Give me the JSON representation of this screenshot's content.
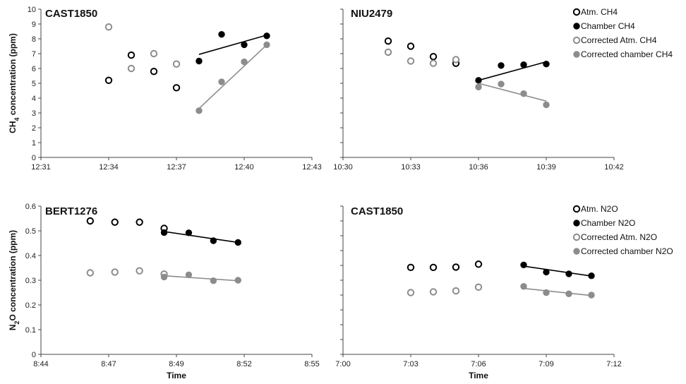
{
  "chart_data": [
    {
      "type": "scatter",
      "title": "CAST1850",
      "ylabel": "CH4 concentration (ppm)",
      "xlabel": "",
      "xlim": [
        "12:31",
        "12:43"
      ],
      "ylim": [
        0,
        10
      ],
      "xticks": [
        "12:31",
        "12:34",
        "12:37",
        "12:40",
        "12:43"
      ],
      "yticks": [
        "0",
        "1",
        "2",
        "3",
        "4",
        "5",
        "6",
        "7",
        "8",
        "9",
        "10"
      ],
      "series": [
        {
          "name": "Atm. CH4",
          "marker": "open",
          "color": "#000000",
          "points": [
            [
              "12:34",
              5.2
            ],
            [
              "12:35",
              6.9
            ],
            [
              "12:36",
              5.8
            ],
            [
              "12:37",
              4.7
            ]
          ]
        },
        {
          "name": "Chamber CH4",
          "marker": "filled",
          "color": "#000000",
          "points": [
            [
              "12:38",
              6.5
            ],
            [
              "12:39",
              8.3
            ],
            [
              "12:40",
              7.6
            ],
            [
              "12:41",
              8.2
            ]
          ],
          "trend": [
            [
              "12:38",
              6.95
            ],
            [
              "12:41",
              8.25
            ]
          ]
        },
        {
          "name": "Corrected Atm. CH4",
          "marker": "open",
          "color": "#8c8c8c",
          "points": [
            [
              "12:34",
              8.8
            ],
            [
              "12:35",
              6.0
            ],
            [
              "12:36",
              7.0
            ],
            [
              "12:37",
              6.3
            ]
          ]
        },
        {
          "name": "Corrected chamber CH4",
          "marker": "filled",
          "color": "#8c8c8c",
          "points": [
            [
              "12:38",
              3.15
            ],
            [
              "12:39",
              5.1
            ],
            [
              "12:40",
              6.45
            ],
            [
              "12:41",
              7.6
            ]
          ],
          "trend": [
            [
              "12:38",
              3.3
            ],
            [
              "12:41",
              7.6
            ]
          ]
        }
      ]
    },
    {
      "type": "scatter",
      "title": "NIU2479",
      "ylabel": "",
      "xlabel": "",
      "xlim": [
        "10:30",
        "10:42"
      ],
      "ylim": [
        0,
        10
      ],
      "xticks": [
        "10:30",
        "10:33",
        "10:36",
        "10:39",
        "10:42"
      ],
      "yticks": [],
      "series": [
        {
          "name": "Atm. CH4",
          "marker": "open",
          "color": "#000000",
          "points": [
            [
              "10:32",
              7.85
            ],
            [
              "10:33",
              7.5
            ],
            [
              "10:34",
              6.8
            ],
            [
              "10:35",
              6.35
            ]
          ]
        },
        {
          "name": "Chamber CH4",
          "marker": "filled",
          "color": "#000000",
          "points": [
            [
              "10:36",
              5.2
            ],
            [
              "10:37",
              6.2
            ],
            [
              "10:38",
              6.25
            ],
            [
              "10:39",
              6.3
            ]
          ],
          "trend": [
            [
              "10:36",
              5.2
            ],
            [
              "10:39",
              6.45
            ]
          ]
        },
        {
          "name": "Corrected Atm. CH4",
          "marker": "open",
          "color": "#8c8c8c",
          "points": [
            [
              "10:32",
              7.1
            ],
            [
              "10:33",
              6.5
            ],
            [
              "10:34",
              6.35
            ],
            [
              "10:35",
              6.6
            ]
          ]
        },
        {
          "name": "Corrected chamber CH4",
          "marker": "filled",
          "color": "#8c8c8c",
          "points": [
            [
              "10:36",
              4.75
            ],
            [
              "10:37",
              4.95
            ],
            [
              "10:38",
              4.3
            ],
            [
              "10:39",
              3.55
            ]
          ],
          "trend": [
            [
              "10:36",
              5.0
            ],
            [
              "10:39",
              3.8
            ]
          ]
        }
      ],
      "legend": [
        "Atm. CH4",
        "Chamber CH4",
        "Corrected Atm. CH4",
        "Corrected chamber CH4"
      ],
      "legend_position": "right"
    },
    {
      "type": "scatter",
      "title": "BERT1276",
      "ylabel": "N2O concentration (ppm)",
      "xlabel": "Time",
      "xlim": [
        "8:44",
        "8:55"
      ],
      "ylim": [
        0,
        0.6
      ],
      "xticks": [
        "8:44",
        "8:47",
        "8:49",
        "8:52",
        "8:55"
      ],
      "yticks": [
        "0",
        "0.1",
        "0.2",
        "0.3",
        "0.4",
        "0.5",
        "0.6"
      ],
      "series": [
        {
          "name": "Atm. N2O",
          "marker": "open",
          "color": "#000000",
          "points": [
            [
              "8:46",
              0.54
            ],
            [
              "8:47",
              0.535
            ],
            [
              "8:48",
              0.535
            ],
            [
              "8:49",
              0.51
            ]
          ]
        },
        {
          "name": "Chamber N2O",
          "marker": "filled",
          "color": "#000000",
          "points": [
            [
              "8:49",
              0.493
            ],
            [
              "8:50",
              0.492
            ],
            [
              "8:51",
              0.46
            ],
            [
              "8:52",
              0.453
            ]
          ],
          "trend": [
            [
              "8:49",
              0.497
            ],
            [
              "8:52",
              0.453
            ]
          ]
        },
        {
          "name": "Corrected Atm. N2O",
          "marker": "open",
          "color": "#8c8c8c",
          "points": [
            [
              "8:46",
              0.33
            ],
            [
              "8:47",
              0.333
            ],
            [
              "8:48",
              0.338
            ],
            [
              "8:49",
              0.325
            ]
          ]
        },
        {
          "name": "Corrected chamber N2O",
          "marker": "filled",
          "color": "#8c8c8c",
          "points": [
            [
              "8:49",
              0.313
            ],
            [
              "8:50",
              0.322
            ],
            [
              "8:51",
              0.298
            ],
            [
              "8:52",
              0.3
            ]
          ],
          "trend": [
            [
              "8:49",
              0.318
            ],
            [
              "8:52",
              0.298
            ]
          ]
        }
      ]
    },
    {
      "type": "scatter",
      "title": "CAST1850",
      "ylabel": "",
      "xlabel": "Time",
      "xlim": [
        "7:00",
        "7:12"
      ],
      "ylim": [
        0,
        0.6
      ],
      "xticks": [
        "7:00",
        "7:03",
        "7:06",
        "7:09",
        "7:12"
      ],
      "yticks": [],
      "series": [
        {
          "name": "Atm. N2O",
          "marker": "open",
          "color": "#000000",
          "points": [
            [
              "7:03",
              0.352
            ],
            [
              "7:04",
              0.352
            ],
            [
              "7:05",
              0.353
            ],
            [
              "7:06",
              0.365
            ]
          ]
        },
        {
          "name": "Chamber N2O",
          "marker": "filled",
          "color": "#000000",
          "points": [
            [
              "7:08",
              0.362
            ],
            [
              "7:09",
              0.333
            ],
            [
              "7:10",
              0.326
            ],
            [
              "7:11",
              0.318
            ]
          ],
          "trend": [
            [
              "7:08",
              0.357
            ],
            [
              "7:11",
              0.317
            ]
          ]
        },
        {
          "name": "Corrected Atm. N2O",
          "marker": "open",
          "color": "#8c8c8c",
          "points": [
            [
              "7:03",
              0.25
            ],
            [
              "7:04",
              0.253
            ],
            [
              "7:05",
              0.257
            ],
            [
              "7:06",
              0.272
            ]
          ]
        },
        {
          "name": "Corrected chamber N2O",
          "marker": "filled",
          "color": "#8c8c8c",
          "points": [
            [
              "7:08",
              0.275
            ],
            [
              "7:09",
              0.25
            ],
            [
              "7:10",
              0.245
            ],
            [
              "7:11",
              0.24
            ]
          ],
          "trend": [
            [
              "7:08",
              0.267
            ],
            [
              "7:11",
              0.238
            ]
          ]
        }
      ],
      "legend": [
        "Atm. N2O",
        "Chamber N2O",
        "Corrected Atm. N2O",
        "Corrected chamber N2O"
      ],
      "legend_position": "right"
    }
  ]
}
